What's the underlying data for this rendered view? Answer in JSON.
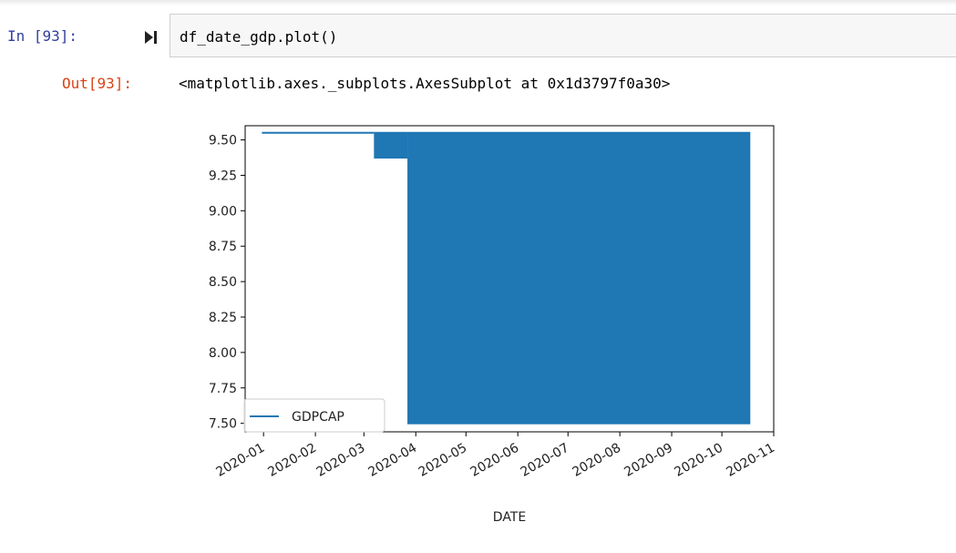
{
  "cell": {
    "in_prompt": "In [93]:",
    "code": "df_date_gdp.plot()",
    "out_prompt": "Out[93]:",
    "output_text": "<matplotlib.axes._subplots.AxesSubplot at 0x1d3797f0a30>"
  },
  "icons": {
    "run": "run-cell-icon"
  },
  "chart_data": {
    "type": "line",
    "xlabel": "DATE",
    "ylabel": "",
    "x_ticks": [
      "2020-01",
      "2020-02",
      "2020-03",
      "2020-04",
      "2020-05",
      "2020-06",
      "2020-07",
      "2020-08",
      "2020-09",
      "2020-10",
      "2020-11"
    ],
    "y_ticks": [
      "7.50",
      "7.75",
      "8.00",
      "8.25",
      "8.50",
      "8.75",
      "9.00",
      "9.25",
      "9.50"
    ],
    "ylim": [
      7.44,
      9.6
    ],
    "xlim": [
      "2019-12-21",
      "2020-11-01"
    ],
    "series": [
      {
        "name": "GDPCAP",
        "color": "#1f77b4",
        "segments": [
          {
            "x_start": "2019-12-31",
            "x_end": "2020-03-07",
            "y_low": 9.55,
            "y_high": 9.55
          },
          {
            "x_start": "2020-03-07",
            "x_end": "2020-03-27",
            "y_low": 9.375,
            "y_high": 9.55
          },
          {
            "x_start": "2020-03-27",
            "x_end": "2020-10-18",
            "y_low": 7.5,
            "y_high": 9.55
          }
        ]
      }
    ],
    "legend": "lower left",
    "grid": false
  }
}
